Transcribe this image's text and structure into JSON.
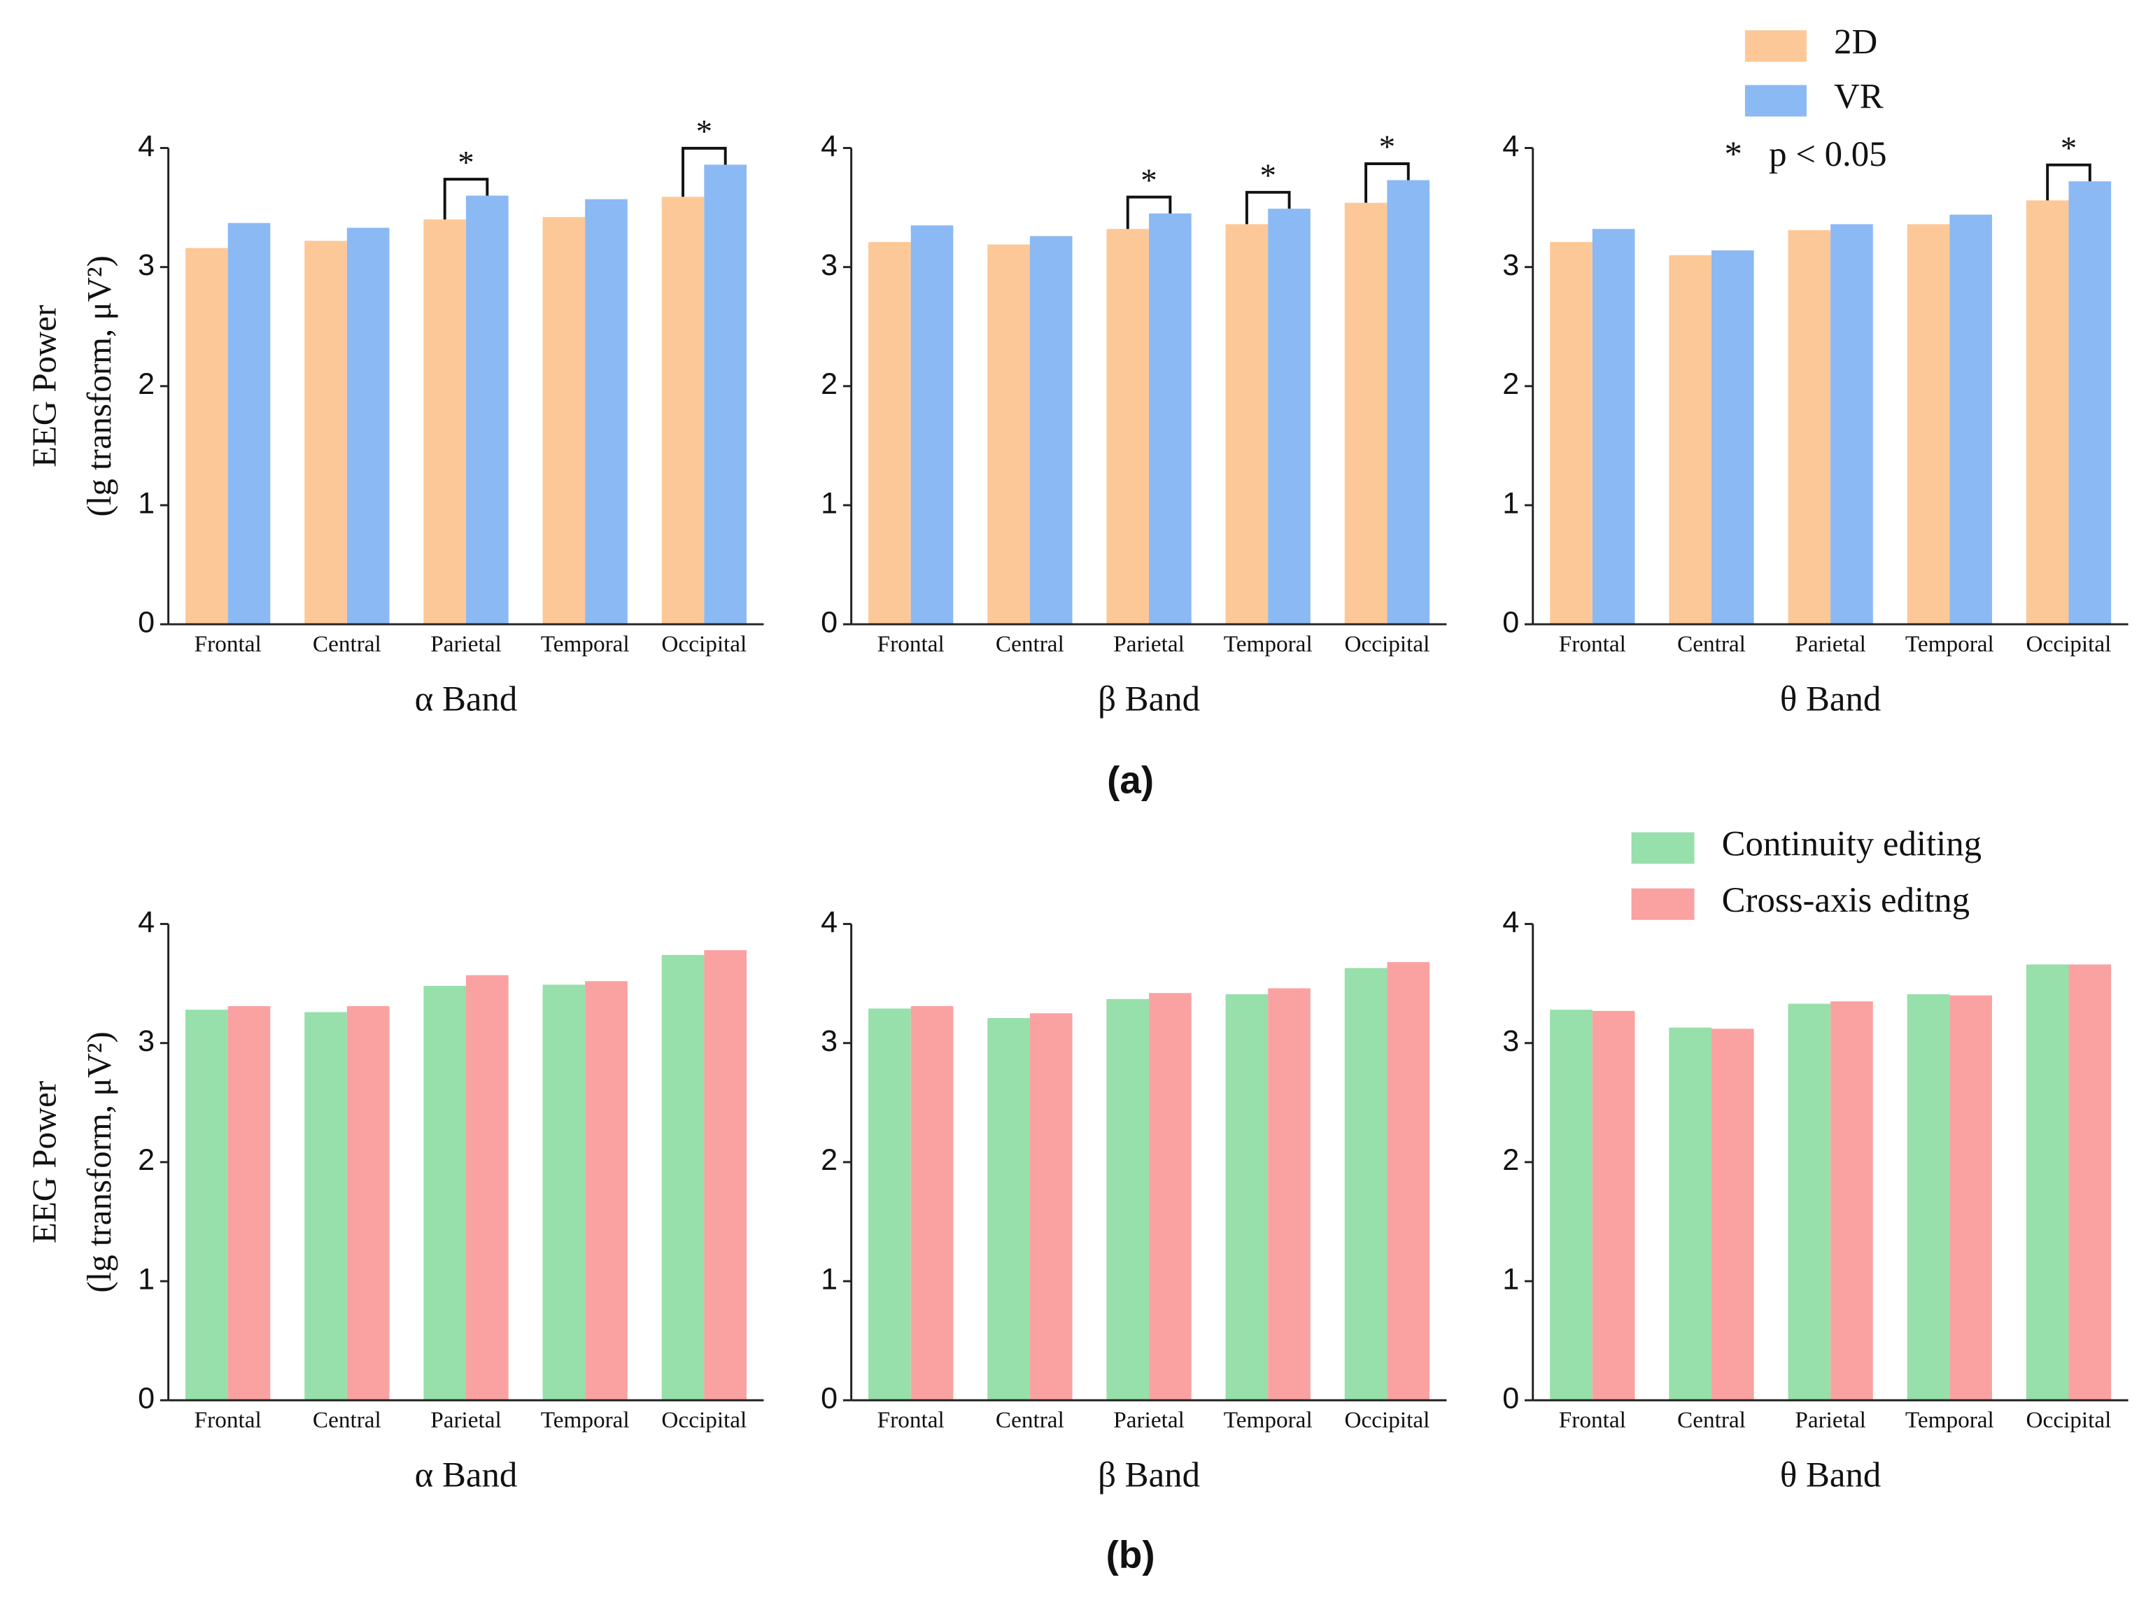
{
  "captions": [
    "(a)",
    "(b)"
  ],
  "chart_data": [
    {
      "type": "bar",
      "categories": [
        "Frontal",
        "Central",
        "Parietal",
        "Temporal",
        "Occipital"
      ],
      "series": [
        {
          "name": "2D",
          "color": "#fdc897",
          "values": [
            3.16,
            3.22,
            3.4,
            3.42,
            3.59
          ]
        },
        {
          "name": "VR",
          "color": "#8bb9f3",
          "values": [
            3.37,
            3.33,
            3.6,
            3.57,
            3.86
          ]
        }
      ],
      "ylim": [
        0,
        4
      ],
      "yticks": [
        0,
        1,
        2,
        3,
        4
      ],
      "xlabel": "α Band",
      "ylabel": [
        "EEG Power",
        "(lg transform, μV²)"
      ],
      "significant": [
        "Parietal",
        "Occipital"
      ],
      "significance_marker": "*"
    },
    {
      "type": "bar",
      "categories": [
        "Frontal",
        "Central",
        "Parietal",
        "Temporal",
        "Occipital"
      ],
      "series": [
        {
          "name": "2D",
          "color": "#fdc897",
          "values": [
            3.21,
            3.19,
            3.32,
            3.36,
            3.54
          ]
        },
        {
          "name": "VR",
          "color": "#8bb9f3",
          "values": [
            3.35,
            3.26,
            3.45,
            3.49,
            3.73
          ]
        }
      ],
      "ylim": [
        0,
        4
      ],
      "yticks": [
        0,
        1,
        2,
        3,
        4
      ],
      "xlabel": "β Band",
      "significant": [
        "Parietal",
        "Temporal",
        "Occipital"
      ],
      "significance_marker": "*"
    },
    {
      "type": "bar",
      "categories": [
        "Frontal",
        "Central",
        "Parietal",
        "Temporal",
        "Occipital"
      ],
      "series": [
        {
          "name": "2D",
          "color": "#fdc897",
          "values": [
            3.21,
            3.1,
            3.31,
            3.36,
            3.56
          ]
        },
        {
          "name": "VR",
          "color": "#8bb9f3",
          "values": [
            3.32,
            3.14,
            3.36,
            3.44,
            3.72
          ]
        }
      ],
      "ylim": [
        0,
        4
      ],
      "yticks": [
        0,
        1,
        2,
        3,
        4
      ],
      "xlabel": "θ Band",
      "significant": [
        "Occipital"
      ],
      "significance_marker": "*",
      "legend": true,
      "legend_note": "*   p < 0.05"
    },
    {
      "type": "bar",
      "categories": [
        "Frontal",
        "Central",
        "Parietal",
        "Temporal",
        "Occipital"
      ],
      "series": [
        {
          "name": "Continuity editing",
          "color": "#97dfab",
          "values": [
            3.28,
            3.26,
            3.48,
            3.49,
            3.74
          ]
        },
        {
          "name": "Cross-axis editng",
          "color": "#faa1a1",
          "values": [
            3.31,
            3.31,
            3.57,
            3.52,
            3.78
          ]
        }
      ],
      "ylim": [
        0,
        4
      ],
      "yticks": [
        0,
        1,
        2,
        3,
        4
      ],
      "xlabel": "α Band",
      "ylabel": [
        "EEG Power",
        "(lg transform, μV²)"
      ]
    },
    {
      "type": "bar",
      "categories": [
        "Frontal",
        "Central",
        "Parietal",
        "Temporal",
        "Occipital"
      ],
      "series": [
        {
          "name": "Continuity editing",
          "color": "#97dfab",
          "values": [
            3.29,
            3.21,
            3.37,
            3.41,
            3.63
          ]
        },
        {
          "name": "Cross-axis editng",
          "color": "#faa1a1",
          "values": [
            3.31,
            3.25,
            3.42,
            3.46,
            3.68
          ]
        }
      ],
      "ylim": [
        0,
        4
      ],
      "yticks": [
        0,
        1,
        2,
        3,
        4
      ],
      "xlabel": "β Band"
    },
    {
      "type": "bar",
      "categories": [
        "Frontal",
        "Central",
        "Parietal",
        "Temporal",
        "Occipital"
      ],
      "series": [
        {
          "name": "Continuity editing",
          "color": "#97dfab",
          "values": [
            3.28,
            3.13,
            3.33,
            3.41,
            3.66
          ]
        },
        {
          "name": "Cross-axis editng",
          "color": "#faa1a1",
          "values": [
            3.27,
            3.12,
            3.35,
            3.4,
            3.66
          ]
        }
      ],
      "ylim": [
        0,
        4
      ],
      "yticks": [
        0,
        1,
        2,
        3,
        4
      ],
      "xlabel": "θ Band",
      "legend": true
    }
  ]
}
